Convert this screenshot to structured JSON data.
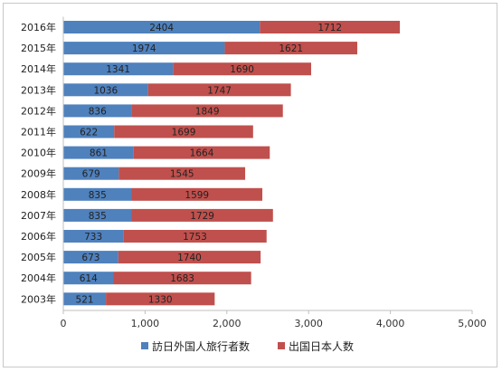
{
  "chart_data": {
    "type": "bar",
    "orientation": "horizontal",
    "stacked": true,
    "categories": [
      "2016年",
      "2015年",
      "2014年",
      "2013年",
      "2012年",
      "2011年",
      "2010年",
      "2009年",
      "2008年",
      "2007年",
      "2006年",
      "2005年",
      "2004年",
      "2003年"
    ],
    "series": [
      {
        "name": "訪日外国人旅行者数",
        "color": "#4f81bd",
        "values": [
          2404,
          1974,
          1341,
          1036,
          836,
          622,
          861,
          679,
          835,
          835,
          733,
          673,
          614,
          521
        ]
      },
      {
        "name": "出国日本人数",
        "color": "#c0504d",
        "values": [
          1712,
          1621,
          1690,
          1747,
          1849,
          1699,
          1664,
          1545,
          1599,
          1729,
          1753,
          1740,
          1683,
          1330
        ]
      }
    ],
    "xlim": [
      0,
      5000
    ],
    "xticks": [
      0,
      1000,
      2000,
      3000,
      4000,
      5000
    ],
    "xtick_labels": [
      "0",
      "1,000",
      "2,000",
      "3,000",
      "4,000",
      "5,000"
    ],
    "grid": false,
    "legend_position": "bottom"
  }
}
